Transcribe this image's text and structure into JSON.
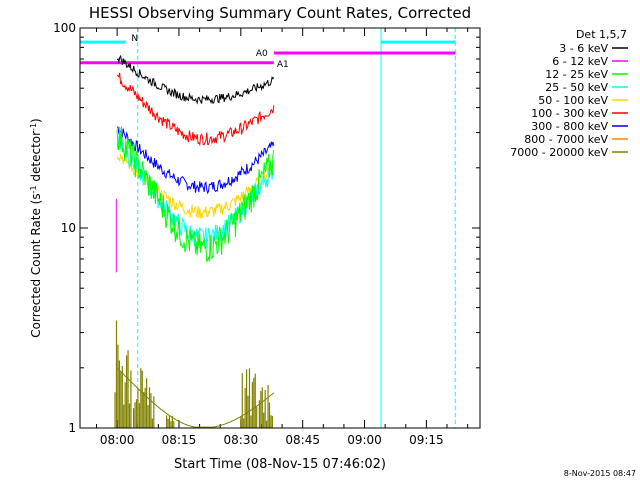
{
  "chart_data": {
    "type": "line",
    "title": "HESSI Observing Summary Count Rates, Corrected",
    "xlabel": "Start Time (08-Nov-15 07:46:02)",
    "ylabel_main": "Corrected Count Rate (s",
    "ylabel_sup1": "-1",
    "ylabel_mid": " detector",
    "ylabel_sup2": "-1",
    "ylabel_end": ")",
    "yscale": "log",
    "ylim": [
      1,
      100
    ],
    "xlim_minutes": [
      -9,
      88
    ],
    "x_ticks": [
      {
        "t": 0,
        "label": "08:00"
      },
      {
        "t": 15,
        "label": "08:15"
      },
      {
        "t": 30,
        "label": "08:30"
      },
      {
        "t": 45,
        "label": "08:45"
      },
      {
        "t": 60,
        "label": "09:00"
      },
      {
        "t": 75,
        "label": "09:15"
      }
    ],
    "y_ticks": [
      {
        "v": 1,
        "label": "1"
      },
      {
        "v": 10,
        "label": "10"
      },
      {
        "v": 100,
        "label": "100"
      }
    ],
    "legend_header": "Det 1,5,7",
    "series": [
      {
        "name": "3 - 6 keV",
        "color": "#000000",
        "start": 72,
        "min": 44,
        "end": 55,
        "noise": 0.05
      },
      {
        "name": "6 - 12 keV",
        "color": "#ff00ff",
        "start": 60,
        "min": 60,
        "end": 60,
        "noise": 0.0
      },
      {
        "name": "12 - 25 keV",
        "color": "#00ff00",
        "start": 30,
        "min": 8,
        "end": 22,
        "noise": 0.18
      },
      {
        "name": "25 - 50 keV",
        "color": "#00ffff",
        "start": 28,
        "min": 9,
        "end": 20,
        "noise": 0.12
      },
      {
        "name": "50 - 100 keV",
        "color": "#ffd700",
        "start": 24,
        "min": 12,
        "end": 20,
        "noise": 0.08
      },
      {
        "name": "100 - 300 keV",
        "color": "#ff0000",
        "start": 58,
        "min": 28,
        "end": 40,
        "noise": 0.07
      },
      {
        "name": "300 - 800 keV",
        "color": "#0000ff",
        "start": 32,
        "min": 16,
        "end": 26,
        "noise": 0.07
      },
      {
        "name": "800 - 7000 keV",
        "color": "#ff8800",
        "start": 26,
        "min": 13,
        "end": 22,
        "noise": 0.07
      },
      {
        "name": "7000 - 20000 keV",
        "color": "#808000",
        "start": 2,
        "min": 1,
        "end": 1.5,
        "noise": 0.0
      }
    ],
    "data_window_minutes": [
      0,
      38
    ],
    "annotations": {
      "N": {
        "label": "N",
        "color": "#00ffff",
        "t_start": -9,
        "t_end": 2,
        "level": 85
      },
      "N_right": {
        "color": "#00ffff",
        "t_start": 64,
        "t_end": 82,
        "level": 85
      },
      "A0": {
        "label": "A0",
        "color": "#ff00ff",
        "t_start": 38,
        "t_end": 82,
        "level": 75
      },
      "A1": {
        "label": "A1",
        "color": "#ff00ff",
        "t_start": -9,
        "t_end": 38,
        "level": 67
      },
      "vlines_solid": [
        -9,
        64
      ],
      "vlines_dashed": [
        5,
        82
      ]
    },
    "footer_date": "8-Nov-2015 08:47"
  }
}
